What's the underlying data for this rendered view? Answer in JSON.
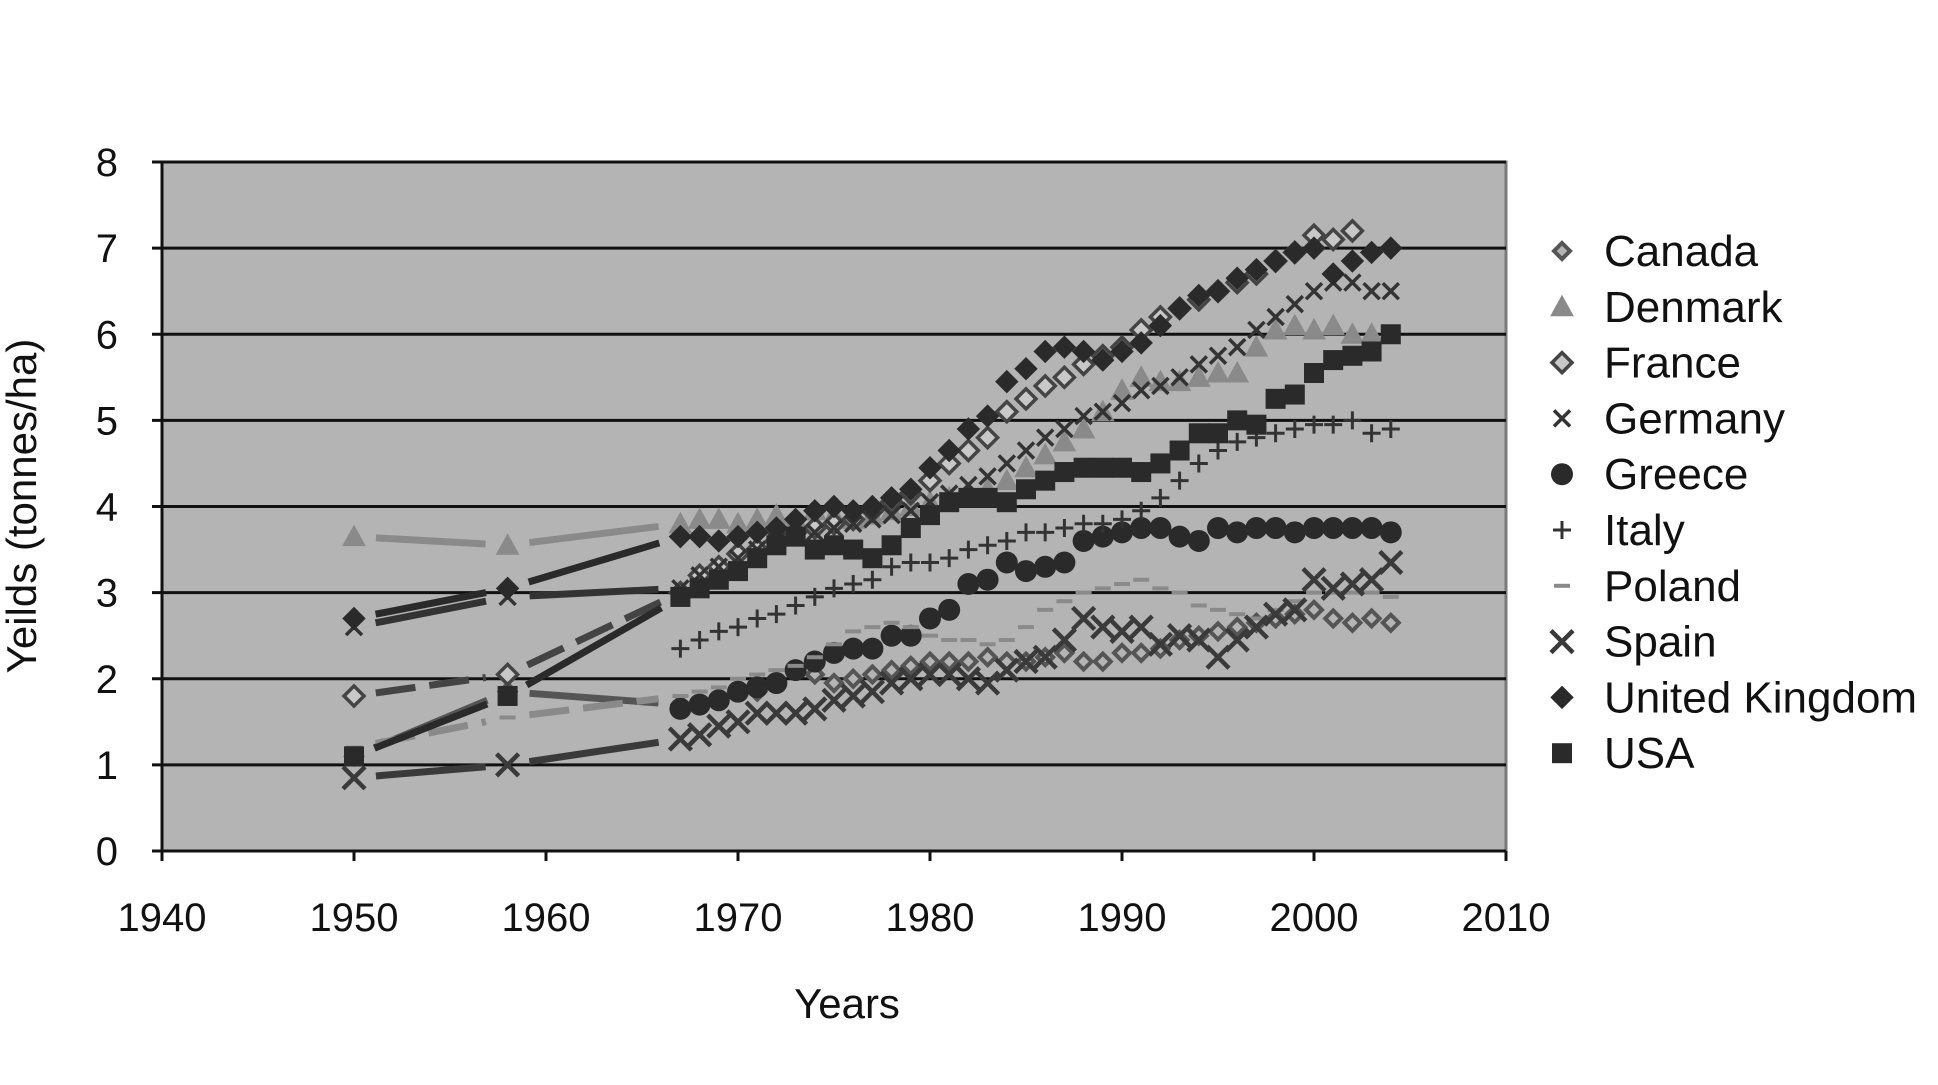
{
  "chart_data": {
    "type": "scatter",
    "title": "",
    "xlabel": "Years",
    "ylabel": "Yeilds (tonnes/ha)",
    "xlim": [
      1940,
      2010
    ],
    "ylim": [
      0,
      8
    ],
    "x_ticks": [
      "1940",
      "1950",
      "1960",
      "1970",
      "1980",
      "1990",
      "2000",
      "2010"
    ],
    "y_ticks": [
      "0",
      "1",
      "2",
      "3",
      "4",
      "5",
      "6",
      "7",
      "8"
    ],
    "grid": "horizontal major gridlines",
    "plot_background": "#b4b4b4",
    "legend_position": "right",
    "series": [
      {
        "name": "Canada",
        "marker": "small-diamond",
        "color": "#555555",
        "x": [
          1967,
          1968,
          1969,
          1970,
          1971,
          1972,
          1973,
          1974,
          1975,
          1976,
          1977,
          1978,
          1979,
          1980,
          1981,
          1982,
          1983,
          1984,
          1985,
          1986,
          1987,
          1988,
          1989,
          1990,
          1991,
          1992,
          1993,
          1994,
          1995,
          1996,
          1997,
          1998,
          1999,
          2000,
          2001,
          2002,
          2003,
          2004
        ],
        "y": [
          1.7,
          1.7,
          1.75,
          1.85,
          1.85,
          1.95,
          2.1,
          2.05,
          1.95,
          2.0,
          2.05,
          2.1,
          2.15,
          2.2,
          2.2,
          2.2,
          2.25,
          2.2,
          2.2,
          2.25,
          2.3,
          2.2,
          2.2,
          2.3,
          2.3,
          2.35,
          2.45,
          2.5,
          2.55,
          2.6,
          2.65,
          2.7,
          2.75,
          2.8,
          2.7,
          2.65,
          2.7,
          2.65
        ],
        "early_x": [
          1950,
          1958
        ],
        "early_y": [
          1.1,
          1.85
        ]
      },
      {
        "name": "Denmark",
        "marker": "triangle",
        "color": "#8a8a8a",
        "x": [
          1967,
          1968,
          1969,
          1970,
          1971,
          1972,
          1973,
          1974,
          1975,
          1976,
          1977,
          1978,
          1979,
          1980,
          1981,
          1982,
          1983,
          1984,
          1985,
          1986,
          1987,
          1988,
          1989,
          1990,
          1991,
          1992,
          1993,
          1994,
          1995,
          1996,
          1997,
          1998,
          1999,
          2000,
          2001,
          2002,
          2003
        ],
        "y": [
          3.8,
          3.85,
          3.85,
          3.8,
          3.85,
          3.9,
          3.85,
          3.95,
          3.9,
          3.85,
          3.9,
          3.95,
          4.0,
          4.05,
          4.1,
          4.15,
          4.2,
          4.3,
          4.45,
          4.6,
          4.75,
          4.9,
          5.1,
          5.35,
          5.5,
          5.45,
          5.45,
          5.5,
          5.55,
          5.55,
          5.85,
          6.05,
          6.1,
          6.05,
          6.1,
          6.0,
          6.0
        ],
        "early_x": [
          1950,
          1958
        ],
        "early_y": [
          3.65,
          3.55
        ]
      },
      {
        "name": "France",
        "marker": "open-diamond",
        "color": "#444444",
        "x": [
          1967,
          1968,
          1969,
          1970,
          1971,
          1972,
          1973,
          1974,
          1975,
          1976,
          1977,
          1978,
          1979,
          1980,
          1981,
          1982,
          1983,
          1984,
          1985,
          1986,
          1987,
          1988,
          1989,
          1990,
          1991,
          1992,
          1993,
          1994,
          1995,
          1996,
          1997,
          1998,
          1999,
          2000,
          2001,
          2002
        ],
        "y": [
          3.0,
          3.2,
          3.3,
          3.45,
          3.5,
          3.6,
          3.7,
          3.75,
          3.8,
          3.85,
          3.95,
          4.05,
          4.15,
          4.3,
          4.5,
          4.65,
          4.8,
          5.1,
          5.25,
          5.4,
          5.5,
          5.65,
          5.75,
          5.85,
          6.05,
          6.2,
          6.3,
          6.4,
          6.5,
          6.6,
          6.7,
          6.85,
          6.95,
          7.15,
          7.1,
          7.2
        ],
        "early_x": [
          1950,
          1958
        ],
        "early_y": [
          1.8,
          2.05
        ]
      },
      {
        "name": "Germany",
        "marker": "small-x",
        "color": "#333333",
        "x": [
          1967,
          1968,
          1969,
          1970,
          1971,
          1972,
          1973,
          1974,
          1975,
          1976,
          1977,
          1978,
          1979,
          1980,
          1981,
          1982,
          1983,
          1984,
          1985,
          1986,
          1987,
          1988,
          1989,
          1990,
          1991,
          1992,
          1993,
          1994,
          1995,
          1996,
          1997,
          1998,
          1999,
          2000,
          2001,
          2002,
          2003,
          2004
        ],
        "y": [
          3.05,
          3.2,
          3.3,
          3.4,
          3.5,
          3.6,
          3.65,
          3.7,
          3.75,
          3.8,
          3.85,
          3.9,
          3.95,
          4.05,
          4.15,
          4.25,
          4.35,
          4.5,
          4.65,
          4.8,
          4.9,
          5.05,
          5.1,
          5.2,
          5.35,
          5.4,
          5.5,
          5.65,
          5.75,
          5.85,
          6.05,
          6.2,
          6.35,
          6.5,
          6.6,
          6.6,
          6.5,
          6.5
        ],
        "early_x": [
          1950,
          1958
        ],
        "early_y": [
          2.6,
          2.95
        ]
      },
      {
        "name": "Greece",
        "marker": "octagon",
        "color": "#2a2a2a",
        "x": [
          1967,
          1968,
          1969,
          1970,
          1971,
          1972,
          1973,
          1974,
          1975,
          1976,
          1977,
          1978,
          1979,
          1980,
          1981,
          1982,
          1983,
          1984,
          1985,
          1986,
          1987,
          1988,
          1989,
          1990,
          1991,
          1992,
          1993,
          1994,
          1995,
          1996,
          1997,
          1998,
          1999,
          2000,
          2001,
          2002,
          2003,
          2004
        ],
        "y": [
          1.65,
          1.7,
          1.75,
          1.85,
          1.9,
          1.95,
          2.1,
          2.2,
          2.3,
          2.35,
          2.35,
          2.5,
          2.5,
          2.7,
          2.8,
          3.1,
          3.15,
          3.35,
          3.25,
          3.3,
          3.35,
          3.6,
          3.65,
          3.7,
          3.75,
          3.75,
          3.65,
          3.6,
          3.75,
          3.7,
          3.75,
          3.75,
          3.7,
          3.75,
          3.75,
          3.75,
          3.75,
          3.7
        ],
        "early_x": [],
        "early_y": []
      },
      {
        "name": "Italy",
        "marker": "plus",
        "color": "#333333",
        "x": [
          1967,
          1968,
          1969,
          1970,
          1971,
          1972,
          1973,
          1974,
          1975,
          1976,
          1977,
          1978,
          1979,
          1980,
          1981,
          1982,
          1983,
          1984,
          1985,
          1986,
          1987,
          1988,
          1989,
          1990,
          1991,
          1992,
          1993,
          1994,
          1995,
          1996,
          1997,
          1998,
          1999,
          2000,
          2001,
          2002,
          2003,
          2004
        ],
        "y": [
          2.35,
          2.45,
          2.55,
          2.6,
          2.7,
          2.75,
          2.85,
          2.95,
          3.05,
          3.1,
          3.15,
          3.3,
          3.35,
          3.35,
          3.4,
          3.5,
          3.55,
          3.6,
          3.7,
          3.7,
          3.75,
          3.8,
          3.8,
          3.85,
          3.95,
          4.1,
          4.3,
          4.5,
          4.65,
          4.75,
          4.8,
          4.85,
          4.9,
          4.95,
          4.95,
          5.0,
          4.85,
          4.9
        ],
        "early_x": [],
        "early_y": []
      },
      {
        "name": "Poland",
        "marker": "dash",
        "color": "#8a8a8a",
        "x": [
          1967,
          1968,
          1969,
          1970,
          1971,
          1972,
          1973,
          1974,
          1975,
          1976,
          1977,
          1978,
          1979,
          1980,
          1981,
          1982,
          1983,
          1984,
          1985,
          1986,
          1987,
          1988,
          1989,
          1990,
          1991,
          1992,
          1993,
          1994,
          1995,
          1996,
          1997,
          1998,
          1999,
          2000,
          2001,
          2002,
          2003,
          2004
        ],
        "y": [
          1.8,
          1.85,
          1.9,
          2.0,
          2.05,
          2.1,
          2.15,
          2.25,
          2.4,
          2.55,
          2.6,
          2.65,
          2.6,
          2.5,
          2.45,
          2.45,
          2.4,
          2.45,
          2.6,
          2.8,
          2.9,
          3.0,
          3.05,
          3.1,
          3.15,
          3.05,
          3.0,
          2.85,
          2.8,
          2.75,
          2.7,
          2.8,
          2.9,
          3.0,
          3.0,
          3.0,
          3.0,
          2.95
        ],
        "early_x": [
          1950,
          1958
        ],
        "early_y": [
          1.2,
          1.55
        ]
      },
      {
        "name": "Spain",
        "marker": "large-x",
        "color": "#3a3a3a",
        "x": [
          1967,
          1968,
          1969,
          1970,
          1971,
          1972,
          1973,
          1974,
          1975,
          1976,
          1977,
          1978,
          1979,
          1980,
          1981,
          1982,
          1983,
          1984,
          1985,
          1986,
          1987,
          1988,
          1989,
          1990,
          1991,
          1992,
          1993,
          1994,
          1995,
          1996,
          1997,
          1998,
          1999,
          2000,
          2001,
          2002,
          2003,
          2004
        ],
        "y": [
          1.3,
          1.35,
          1.45,
          1.5,
          1.6,
          1.6,
          1.6,
          1.65,
          1.75,
          1.8,
          1.85,
          1.95,
          2.0,
          2.05,
          2.05,
          2.0,
          1.95,
          2.1,
          2.2,
          2.25,
          2.45,
          2.7,
          2.6,
          2.55,
          2.6,
          2.4,
          2.5,
          2.45,
          2.25,
          2.45,
          2.6,
          2.75,
          2.8,
          3.15,
          3.05,
          3.1,
          3.15,
          3.35
        ],
        "early_x": [
          1950,
          1958
        ],
        "early_y": [
          0.85,
          1.0
        ]
      },
      {
        "name": "United Kingdom",
        "marker": "filled-diamond",
        "color": "#2a2a2a",
        "x": [
          1967,
          1968,
          1969,
          1970,
          1971,
          1972,
          1973,
          1974,
          1975,
          1976,
          1977,
          1978,
          1979,
          1980,
          1981,
          1982,
          1983,
          1984,
          1985,
          1986,
          1987,
          1988,
          1989,
          1990,
          1991,
          1992,
          1993,
          1994,
          1995,
          1996,
          1997,
          1998,
          1999,
          2000,
          2001,
          2002,
          2003,
          2004
        ],
        "y": [
          3.65,
          3.65,
          3.6,
          3.65,
          3.7,
          3.75,
          3.85,
          3.95,
          4.0,
          3.95,
          4.0,
          4.1,
          4.2,
          4.45,
          4.65,
          4.9,
          5.05,
          5.45,
          5.6,
          5.8,
          5.85,
          5.8,
          5.7,
          5.8,
          5.9,
          6.1,
          6.3,
          6.45,
          6.5,
          6.65,
          6.75,
          6.85,
          6.95,
          7.0,
          6.7,
          6.85,
          6.95,
          7.0
        ],
        "early_x": [
          1950,
          1958
        ],
        "early_y": [
          2.7,
          3.05
        ]
      },
      {
        "name": "USA",
        "marker": "square",
        "color": "#2a2a2a",
        "x": [
          1967,
          1968,
          1969,
          1970,
          1971,
          1972,
          1973,
          1974,
          1975,
          1976,
          1977,
          1978,
          1979,
          1980,
          1981,
          1982,
          1983,
          1984,
          1985,
          1986,
          1987,
          1988,
          1989,
          1990,
          1991,
          1992,
          1993,
          1994,
          1995,
          1996,
          1997,
          1998,
          1999,
          2000,
          2001,
          2002,
          2003,
          2004
        ],
        "y": [
          2.95,
          3.05,
          3.15,
          3.25,
          3.4,
          3.55,
          3.65,
          3.5,
          3.55,
          3.5,
          3.4,
          3.55,
          3.75,
          3.9,
          4.05,
          4.1,
          4.1,
          4.05,
          4.2,
          4.3,
          4.4,
          4.45,
          4.45,
          4.45,
          4.4,
          4.5,
          4.65,
          4.85,
          4.85,
          5.0,
          4.95,
          5.25,
          5.3,
          5.55,
          5.7,
          5.75,
          5.8,
          6.0
        ],
        "early_x": [
          1950,
          1958
        ],
        "early_y": [
          1.1,
          1.8
        ]
      }
    ]
  }
}
